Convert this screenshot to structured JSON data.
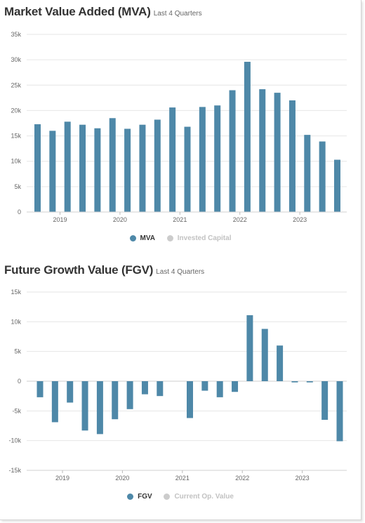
{
  "charts": [
    {
      "title": "Market Value Added (MVA)",
      "subtitle": "Last 4 Quarters",
      "legend": [
        {
          "label": "MVA",
          "color": "#4e88a8",
          "active": true
        },
        {
          "label": "Invested Capital",
          "color": "#cccccc",
          "active": false
        }
      ]
    },
    {
      "title": "Future Growth Value (FGV)",
      "subtitle": "Last 4 Quarters",
      "legend": [
        {
          "label": "FGV",
          "color": "#4e88a8",
          "active": true
        },
        {
          "label": "Current Op. Value",
          "color": "#cccccc",
          "active": false
        }
      ]
    }
  ],
  "chart_data": [
    {
      "type": "bar",
      "title": "Market Value Added (MVA)",
      "subtitle": "Last 4 Quarters",
      "x_ticks": [
        "2019",
        "2020",
        "2021",
        "2022",
        "2023"
      ],
      "y_ticks": [
        "0",
        "5k",
        "10k",
        "15k",
        "20k",
        "25k",
        "30k",
        "35k"
      ],
      "ylim": [
        0,
        35000
      ],
      "grid": true,
      "legend_position": "bottom",
      "series": [
        {
          "name": "MVA",
          "color": "#4e88a8",
          "values": [
            17300,
            16000,
            17800,
            17200,
            16500,
            18500,
            16400,
            17200,
            18200,
            20600,
            16800,
            20700,
            21000,
            24000,
            29600,
            24200,
            23500,
            22000,
            15200,
            13900,
            10300
          ]
        }
      ]
    },
    {
      "type": "bar",
      "title": "Future Growth Value (FGV)",
      "subtitle": "Last 4 Quarters",
      "x_ticks": [
        "2019",
        "2020",
        "2021",
        "2022",
        "2023"
      ],
      "y_ticks": [
        "-15k",
        "-10k",
        "-5k",
        "0",
        "5k",
        "10k",
        "15k"
      ],
      "ylim": [
        -15000,
        15000
      ],
      "grid": true,
      "legend_position": "bottom",
      "series": [
        {
          "name": "FGV",
          "color": "#4e88a8",
          "values": [
            -2700,
            -6900,
            -3600,
            -8300,
            -8900,
            -6400,
            -4700,
            -2200,
            -2500,
            0,
            -6200,
            -1600,
            -2700,
            -1800,
            11100,
            8800,
            6000,
            -200,
            -200,
            -6500,
            -10100
          ]
        }
      ]
    }
  ]
}
